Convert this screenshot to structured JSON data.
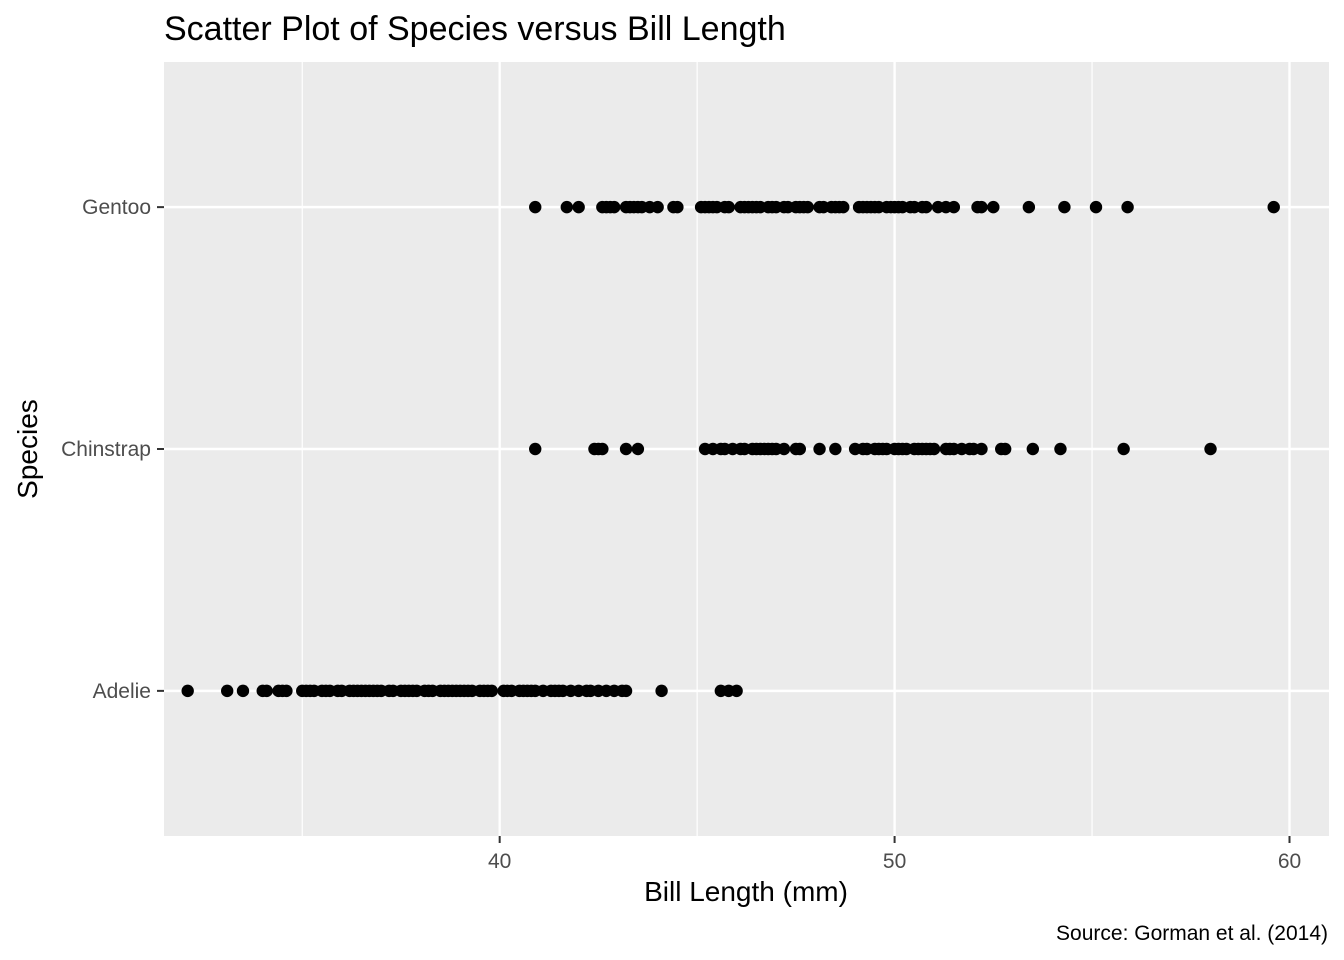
{
  "chart_data": {
    "type": "scatter",
    "title": "Scatter Plot of Species versus Bill Length",
    "xlabel": "Bill Length (mm)",
    "ylabel": "Species",
    "caption": "Source: Gorman et al. (2014)",
    "xlim": [
      31.5,
      61.0
    ],
    "xticks": [
      40,
      50,
      60
    ],
    "categories": [
      "Adelie",
      "Chinstrap",
      "Gentoo"
    ],
    "grid": true,
    "series": [
      {
        "category": "Adelie",
        "x": [
          32.1,
          33.1,
          33.5,
          34.0,
          34.1,
          34.4,
          34.5,
          34.6,
          35.0,
          35.1,
          35.2,
          35.3,
          35.5,
          35.6,
          35.7,
          35.9,
          36.0,
          36.2,
          36.3,
          36.4,
          36.5,
          36.6,
          36.7,
          36.8,
          36.9,
          37.0,
          37.2,
          37.3,
          37.5,
          37.6,
          37.7,
          37.8,
          37.9,
          38.1,
          38.2,
          38.3,
          38.5,
          38.6,
          38.7,
          38.8,
          38.9,
          39.0,
          39.1,
          39.2,
          39.3,
          39.5,
          39.6,
          39.7,
          39.8,
          40.1,
          40.2,
          40.3,
          40.5,
          40.6,
          40.7,
          40.8,
          40.9,
          41.1,
          41.3,
          41.4,
          41.5,
          41.6,
          41.8,
          42.0,
          42.2,
          42.3,
          42.5,
          42.7,
          42.9,
          43.1,
          43.2,
          44.1,
          45.6,
          45.8,
          46.0
        ]
      },
      {
        "category": "Chinstrap",
        "x": [
          40.9,
          42.4,
          42.5,
          42.6,
          43.2,
          43.5,
          45.2,
          45.4,
          45.6,
          45.7,
          45.9,
          46.1,
          46.2,
          46.4,
          46.5,
          46.6,
          46.7,
          46.8,
          46.9,
          47.0,
          47.2,
          47.5,
          47.6,
          48.1,
          48.5,
          49.0,
          49.2,
          49.3,
          49.5,
          49.6,
          49.7,
          49.8,
          50.0,
          50.1,
          50.2,
          50.3,
          50.5,
          50.6,
          50.7,
          50.8,
          50.9,
          51.0,
          51.3,
          51.4,
          51.5,
          51.7,
          51.9,
          52.0,
          52.2,
          52.7,
          52.8,
          53.5,
          54.2,
          55.8,
          58.0
        ]
      },
      {
        "category": "Gentoo",
        "x": [
          40.9,
          41.7,
          42.0,
          42.6,
          42.7,
          42.8,
          42.9,
          43.2,
          43.3,
          43.4,
          43.5,
          43.6,
          43.8,
          44.0,
          44.4,
          44.5,
          45.1,
          45.2,
          45.3,
          45.4,
          45.5,
          45.7,
          45.8,
          46.1,
          46.2,
          46.3,
          46.4,
          46.5,
          46.6,
          46.8,
          46.9,
          47.0,
          47.2,
          47.3,
          47.5,
          47.6,
          47.7,
          47.8,
          48.1,
          48.2,
          48.4,
          48.5,
          48.6,
          48.7,
          49.1,
          49.2,
          49.3,
          49.4,
          49.5,
          49.6,
          49.8,
          49.9,
          50.0,
          50.1,
          50.2,
          50.4,
          50.5,
          50.7,
          50.8,
          51.1,
          51.3,
          51.5,
          52.1,
          52.2,
          52.5,
          53.4,
          54.3,
          55.1,
          55.9,
          59.6
        ]
      }
    ]
  }
}
